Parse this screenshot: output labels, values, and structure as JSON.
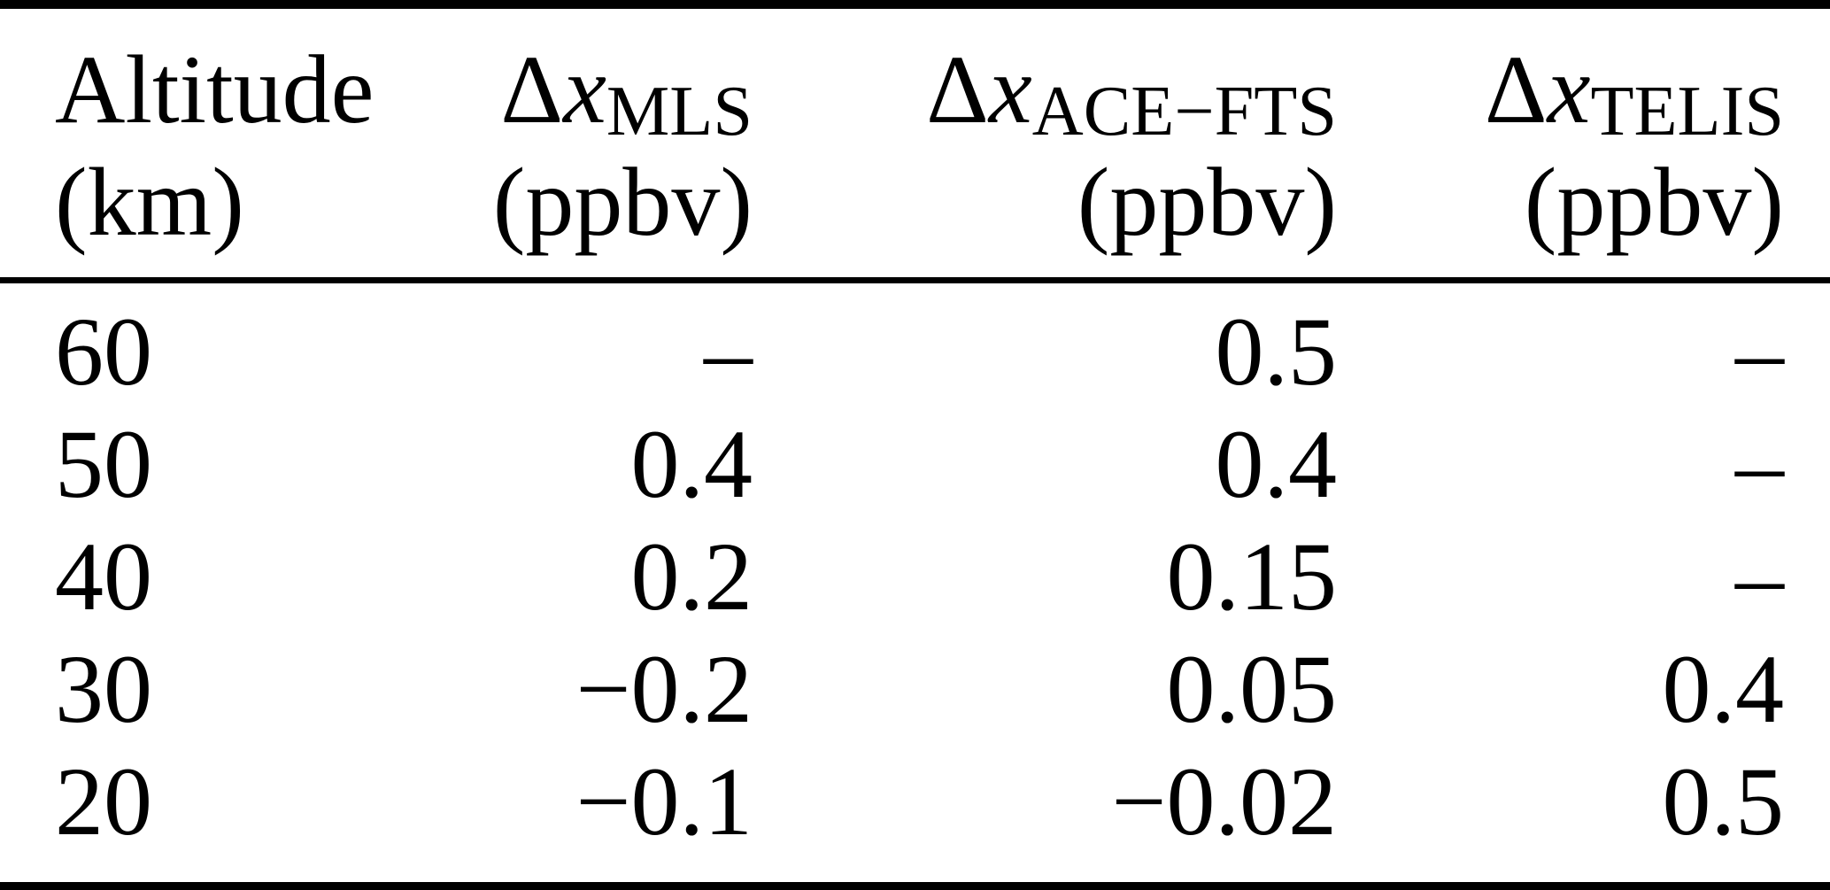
{
  "page": {
    "background_color": "#ffffff",
    "text_color": "#000000",
    "rule_color": "#000000"
  },
  "table": {
    "header": {
      "altitude": {
        "label": "Altitude",
        "unit": "(km)"
      },
      "mls": {
        "delta": "Δ",
        "var": "x",
        "sub": "MLS",
        "unit": "(ppbv)"
      },
      "ace_fts": {
        "delta": "Δ",
        "var": "x",
        "sub": "ACE−FTS",
        "unit": "(ppbv)"
      },
      "telis": {
        "delta": "Δ",
        "var": "x",
        "sub": "TELIS",
        "unit": "(ppbv)"
      }
    },
    "rows": [
      {
        "altitude": "60",
        "mls": "–",
        "ace_fts": "0.5",
        "telis": "–"
      },
      {
        "altitude": "50",
        "mls": "0.4",
        "ace_fts": "0.4",
        "telis": "–"
      },
      {
        "altitude": "40",
        "mls": "0.2",
        "ace_fts": "0.15",
        "telis": "–"
      },
      {
        "altitude": "30",
        "mls": "−0.2",
        "ace_fts": "0.05",
        "telis": "0.4"
      },
      {
        "altitude": "20",
        "mls": "−0.1",
        "ace_fts": "−0.02",
        "telis": "0.5"
      }
    ]
  },
  "chart_data": {
    "type": "table",
    "title": "",
    "columns": [
      "Altitude (km)",
      "Δx_MLS (ppbv)",
      "Δx_ACE−FTS (ppbv)",
      "Δx_TELIS (ppbv)"
    ],
    "rows": [
      [
        60,
        null,
        0.5,
        null
      ],
      [
        50,
        0.4,
        0.4,
        null
      ],
      [
        40,
        0.2,
        0.15,
        null
      ],
      [
        30,
        -0.2,
        0.05,
        0.4
      ],
      [
        20,
        -0.1,
        -0.02,
        0.5
      ]
    ],
    "missing_value_symbol": "–"
  }
}
